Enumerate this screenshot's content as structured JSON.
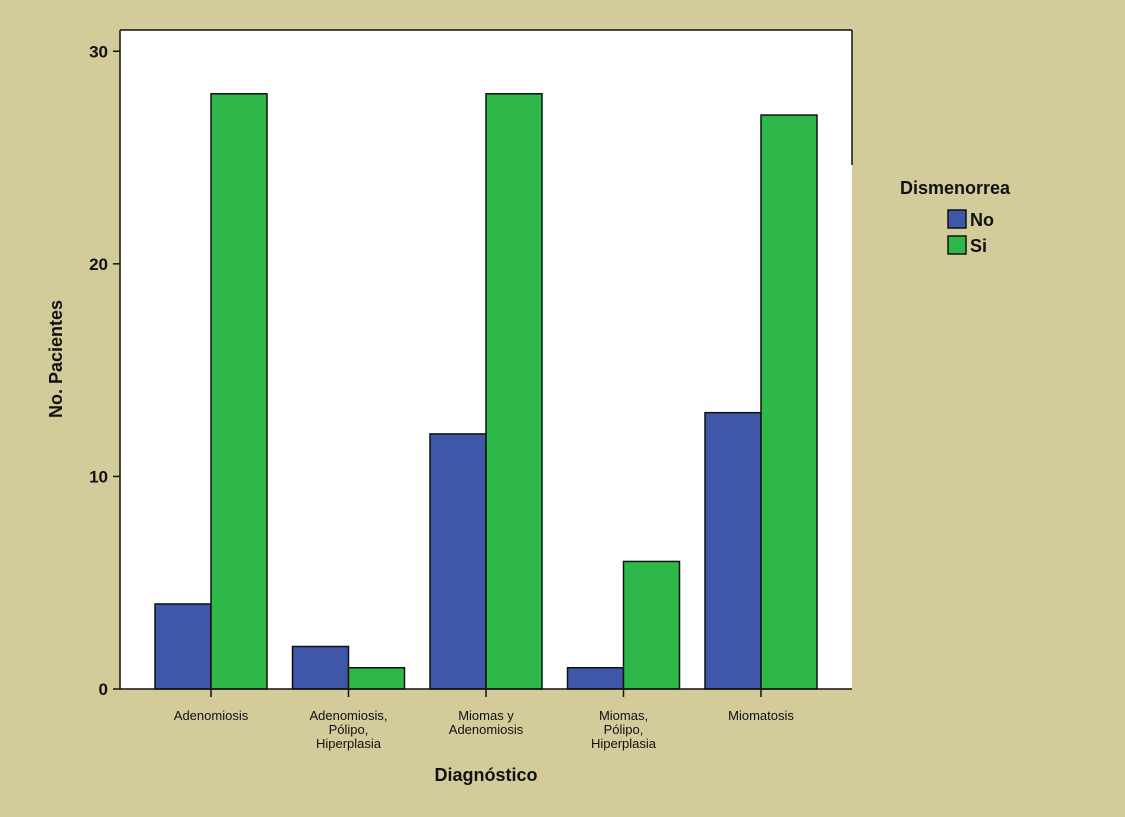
{
  "chart_data": {
    "type": "bar",
    "categories": [
      [
        "Adenomiosis"
      ],
      [
        "Adenomiosis,",
        "Pólipo,",
        "Hiperplasia"
      ],
      [
        "Miomas y",
        "Adenomiosis"
      ],
      [
        "Miomas,",
        "Pólipo,",
        "Hiperplasia"
      ],
      [
        "Miomatosis"
      ]
    ],
    "series": [
      {
        "name": "No",
        "color": "#3f57a8",
        "values": [
          4,
          2,
          12,
          1,
          13
        ]
      },
      {
        "name": "Si",
        "color": "#2fb84a",
        "values": [
          28,
          1,
          28,
          6,
          27
        ]
      }
    ],
    "xlabel": "Diagnóstico",
    "ylabel": "No. Pacientes",
    "ylim": [
      0,
      31
    ],
    "yticks": [
      0,
      10,
      20,
      30
    ],
    "grid": false,
    "legend": {
      "title": "Dismenorrea",
      "position": "right"
    },
    "plot_background": "#ffffff",
    "page_background": "#d3cc9a"
  }
}
